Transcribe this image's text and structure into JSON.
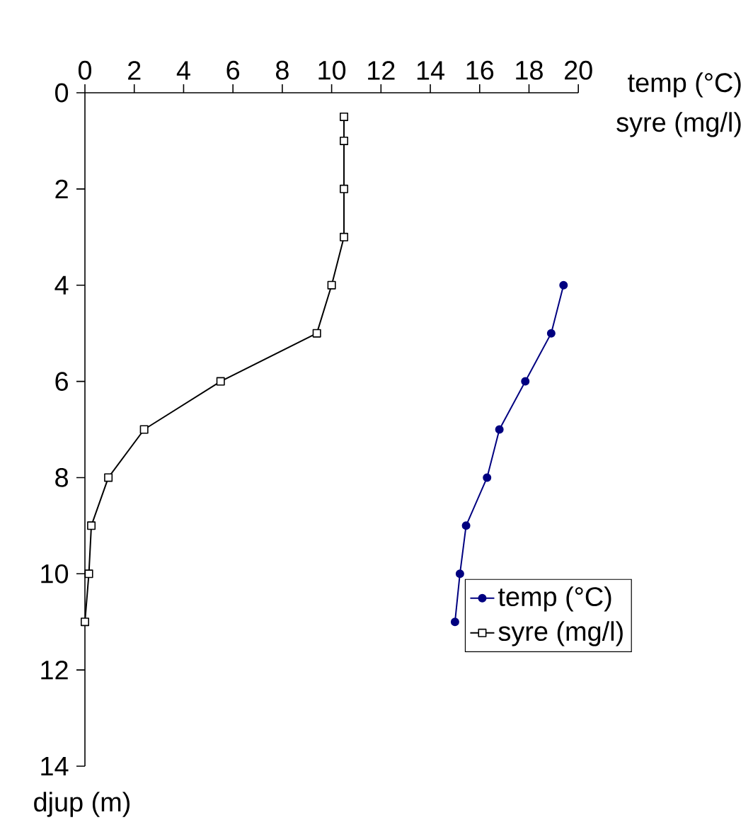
{
  "chart_data": {
    "type": "line",
    "xlabel": "temp (°C)",
    "ylabel": "djup (m)",
    "annotations": [
      "syre (mg/l)"
    ],
    "xlim": [
      0,
      20
    ],
    "xticks": [
      0,
      2,
      4,
      6,
      8,
      10,
      12,
      14,
      16,
      18,
      20
    ],
    "ylim": [
      14,
      0
    ],
    "yticks": [
      0,
      2,
      4,
      6,
      8,
      10,
      12,
      14
    ],
    "legend": "right",
    "grid": false,
    "line_style": "solid",
    "series": [
      {
        "name": "temp (°C)",
        "color": "#000080",
        "marker": "circle",
        "x": [
          19.4,
          18.9,
          17.85,
          16.8,
          16.3,
          15.45,
          15.2,
          15.0
        ],
        "values": [
          4,
          5,
          6,
          7,
          8,
          9,
          10,
          11
        ]
      },
      {
        "name": "syre (mg/l)",
        "color": "#000000",
        "marker": "square",
        "x": [
          10.5,
          10.5,
          10.5,
          10.5,
          10.0,
          9.4,
          5.5,
          2.4,
          0.95,
          0.26,
          0.16,
          0.0
        ],
        "values": [
          0.5,
          1,
          2,
          3,
          4,
          5,
          6,
          7,
          8,
          9,
          10,
          11
        ]
      }
    ]
  }
}
